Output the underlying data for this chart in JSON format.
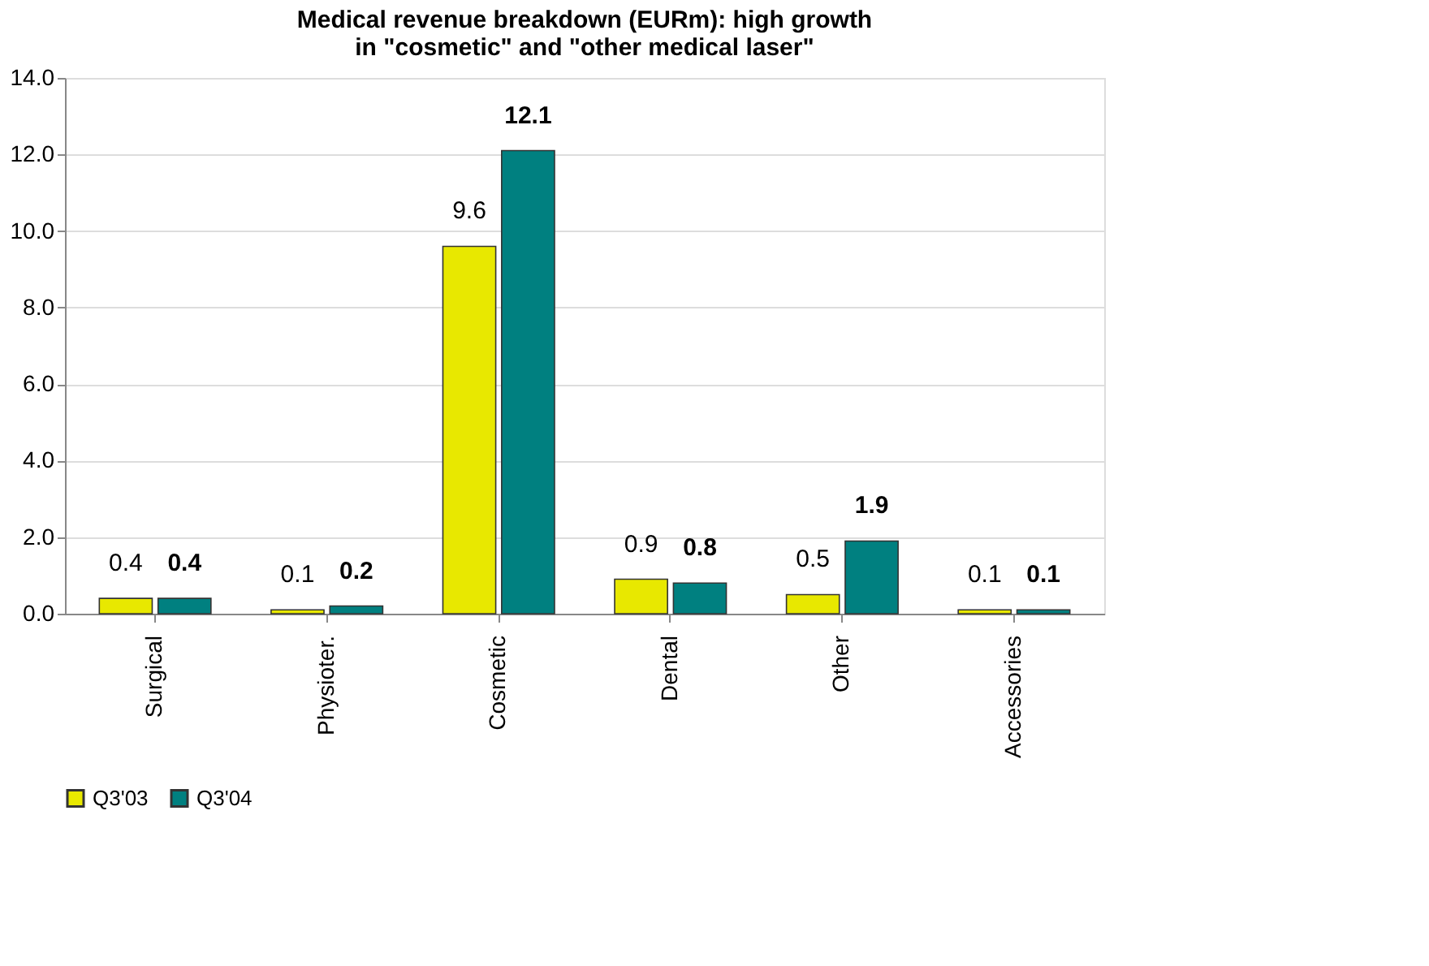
{
  "chart_data": {
    "type": "bar",
    "title": "Medical revenue breakdown (EURm): high growth in \"cosmetic\" and \"other medical laser\"",
    "categories": [
      "Surgical",
      "Physioter.",
      "Cosmetic",
      "Dental",
      "Other",
      "Accessories"
    ],
    "series": [
      {
        "name": "Q3'03",
        "color": "#e8e800",
        "values": [
          0.4,
          0.1,
          9.6,
          0.9,
          0.5,
          0.1
        ]
      },
      {
        "name": "Q3'04",
        "color": "#008080",
        "values": [
          0.4,
          0.2,
          12.1,
          0.8,
          1.9,
          0.1
        ]
      }
    ],
    "ylim": [
      0,
      14
    ],
    "yticks": [
      {
        "value": 0,
        "label": "0.0"
      },
      {
        "value": 2,
        "label": "2.0"
      },
      {
        "value": 4,
        "label": "4.0"
      },
      {
        "value": 6,
        "label": "6.0"
      },
      {
        "value": 8,
        "label": "8.0"
      },
      {
        "value": 10,
        "label": "10.0"
      },
      {
        "value": 12,
        "label": "12.0"
      },
      {
        "value": 14,
        "label": "14.0"
      }
    ],
    "grid": "y",
    "legend": "bottom",
    "data_labels": true
  }
}
